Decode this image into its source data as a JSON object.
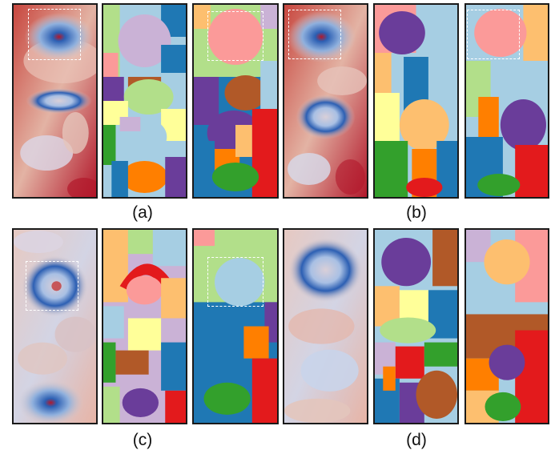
{
  "captions": {
    "a": "(a)",
    "b": "(b)",
    "c": "(c)",
    "d": "(d)"
  },
  "colors": {
    "field_red": "#b2182b",
    "field_light": "#d9d9e6",
    "field_blue": "#2c5fb3",
    "segment_palette": [
      "#a6cee3",
      "#1f78b4",
      "#b2df8a",
      "#33a02c",
      "#fb9a99",
      "#e31a1c",
      "#fdbf6f",
      "#ff7f00",
      "#cab2d6",
      "#6a3d9a",
      "#b15928",
      "#ffff99"
    ],
    "highlight_box": "#ffffff"
  }
}
